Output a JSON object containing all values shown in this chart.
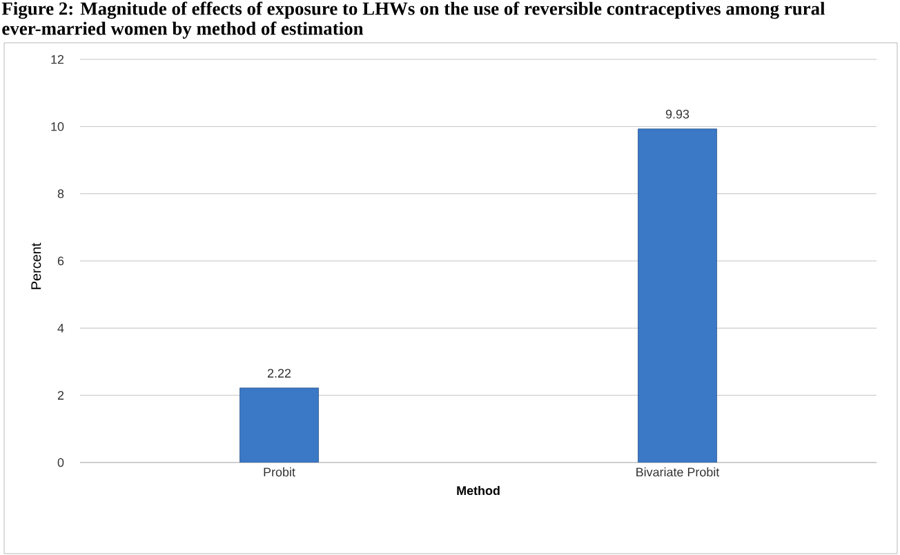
{
  "chart_data": {
    "type": "bar",
    "title": "Figure 2: Magnitude of effects of exposure to LHWs on the use of reversible contraceptives among rural ever-married women by method of estimation",
    "categories": [
      "Probit",
      "Bivariate Probit"
    ],
    "values": [
      2.22,
      9.93
    ],
    "color": "#3b78c6",
    "xlabel": "Method",
    "ylabel": "Percent",
    "ylim": [
      0,
      12
    ],
    "yticks": [
      0,
      2,
      4,
      6,
      8,
      10,
      12
    ],
    "grid": "y",
    "data_labels": true
  }
}
